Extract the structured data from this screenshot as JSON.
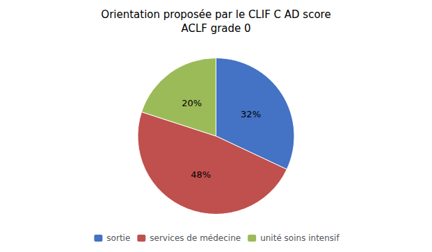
{
  "chart_data": {
    "type": "pie",
    "title": "Orientation proposée par le CLIF C AD score\nACLF grade 0",
    "categories": [
      "sortie",
      "services de médecine",
      "unité soins intensif"
    ],
    "values": [
      32,
      48,
      20
    ],
    "value_labels": [
      "32%",
      "48%",
      "20%"
    ],
    "colors": [
      "#4472C4",
      "#C0504D",
      "#9BBB59"
    ],
    "data_labels": true,
    "legend": "bottom"
  }
}
